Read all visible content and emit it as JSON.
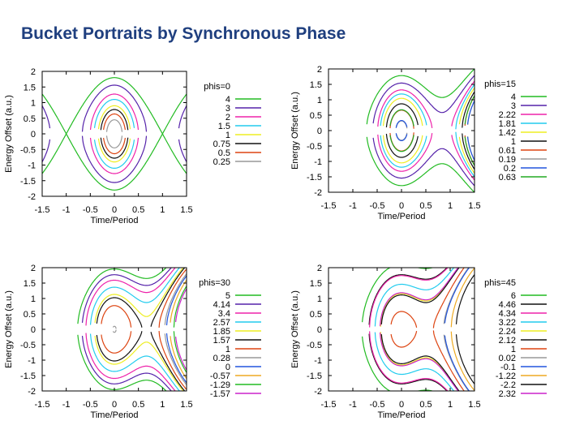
{
  "page": {
    "title": "Bucket Portraits by Synchronous Phase"
  },
  "chart_data": [
    {
      "type": "line",
      "title": "",
      "xlabel": "Time/Period",
      "ylabel": "Energy Offset (a.u.)",
      "xlim": [
        -1.5,
        1.5
      ],
      "ylim": [
        -2,
        2
      ],
      "xticks": [
        "-1.5",
        "-1",
        "-0.5",
        "0",
        "0.5",
        "1",
        "1.5"
      ],
      "yticks": [
        "-2",
        "-1.5",
        "-1",
        "-0.5",
        "0",
        "0.5",
        "1",
        "1.5",
        "2"
      ],
      "phi_s_deg": 0,
      "legend_title": "phis=0",
      "legend_position": "right",
      "series": [
        {
          "name": "4",
          "H": 4,
          "color": "#22bb22"
        },
        {
          "name": "3",
          "H": 3,
          "color": "#5522aa"
        },
        {
          "name": "2",
          "H": 2,
          "color": "#ee22aa"
        },
        {
          "name": "1.5",
          "H": 1.5,
          "color": "#22ccee"
        },
        {
          "name": "1",
          "H": 1,
          "color": "#eeee22"
        },
        {
          "name": "0.75",
          "H": 0.75,
          "color": "#111111"
        },
        {
          "name": "0.5",
          "H": 0.5,
          "color": "#dd4411"
        },
        {
          "name": "0.25",
          "H": 0.25,
          "color": "#999999"
        }
      ]
    },
    {
      "type": "line",
      "title": "",
      "xlabel": "Time/Period",
      "ylabel": "Energy Offset (a.u.)",
      "xlim": [
        -1.5,
        1.5
      ],
      "ylim": [
        -2,
        2
      ],
      "xticks": [
        "-1.5",
        "-1",
        "-0.5",
        "0",
        "0.5",
        "1",
        "1.5"
      ],
      "yticks": [
        "-2",
        "-1.5",
        "-1",
        "-0.5",
        "0",
        "0.5",
        "1",
        "1.5",
        "2"
      ],
      "phi_s_deg": 15,
      "legend_title": "phis=15",
      "legend_position": "right",
      "series": [
        {
          "name": "4",
          "H": 4,
          "color": "#22bb22"
        },
        {
          "name": "3",
          "H": 3,
          "color": "#5522aa"
        },
        {
          "name": "2.22",
          "H": 2.22,
          "color": "#ee22aa"
        },
        {
          "name": "1.81",
          "H": 1.81,
          "color": "#22ccee"
        },
        {
          "name": "1.42",
          "H": 1.42,
          "color": "#eeee22"
        },
        {
          "name": "1",
          "H": 1,
          "color": "#111111"
        },
        {
          "name": "0.61",
          "H": 0.61,
          "color": "#dd4411"
        },
        {
          "name": "0.19",
          "H": 0.19,
          "color": "#999999"
        },
        {
          "name": "0.2",
          "H": 0.2,
          "color": "#2255dd"
        },
        {
          "name": "0.63",
          "H": 0.63,
          "color": "#22aa22"
        }
      ]
    },
    {
      "type": "line",
      "title": "",
      "xlabel": "Time/Period",
      "ylabel": "Energy Offset (a.u.)",
      "xlim": [
        -1.5,
        1.5
      ],
      "ylim": [
        -2,
        2
      ],
      "xticks": [
        "-1.5",
        "-1",
        "-0.5",
        "0",
        "0.5",
        "1",
        "1.5"
      ],
      "yticks": [
        "-2",
        "-1.5",
        "-1",
        "-0.5",
        "0",
        "0.5",
        "1",
        "1.5",
        "2"
      ],
      "phi_s_deg": 30,
      "legend_title": "phis=30",
      "legend_position": "right",
      "series": [
        {
          "name": "5",
          "H": 5,
          "color": "#22bb22"
        },
        {
          "name": "4.14",
          "H": 4.14,
          "color": "#5522aa"
        },
        {
          "name": "3.4",
          "H": 3.4,
          "color": "#ee22aa"
        },
        {
          "name": "2.57",
          "H": 2.57,
          "color": "#22ccee"
        },
        {
          "name": "1.85",
          "H": 1.85,
          "color": "#eeee22"
        },
        {
          "name": "1.57",
          "H": 1.57,
          "color": "#111111"
        },
        {
          "name": "1",
          "H": 1,
          "color": "#dd4411"
        },
        {
          "name": "0.28",
          "H": 0.28,
          "color": "#999999"
        },
        {
          "name": "0",
          "H": 0,
          "color": "#2255dd"
        },
        {
          "name": "-0.57",
          "H": -0.57,
          "color": "#eeaa22"
        },
        {
          "name": "-1.29",
          "H": -1.29,
          "color": "#22bb22"
        },
        {
          "name": "-1.57",
          "H": -1.57,
          "color": "#cc22cc"
        }
      ]
    },
    {
      "type": "line",
      "title": "",
      "xlabel": "Time/Period",
      "ylabel": "Energy Offset (a.u.)",
      "xlim": [
        -1.5,
        1.5
      ],
      "ylim": [
        -2,
        2
      ],
      "xticks": [
        "-1.5",
        "-1",
        "-0.5",
        "0",
        "0.5",
        "1",
        "1.5"
      ],
      "yticks": [
        "-2",
        "-1.5",
        "-1",
        "-0.5",
        "0",
        "0.5",
        "1",
        "1.5",
        "2"
      ],
      "phi_s_deg": 45,
      "legend_title": "phis=45",
      "legend_position": "right",
      "series": [
        {
          "name": "6",
          "H": 6,
          "color": "#22bb22"
        },
        {
          "name": "4.46",
          "H": 4.46,
          "color": "#111111"
        },
        {
          "name": "4.34",
          "H": 4.34,
          "color": "#ee22aa"
        },
        {
          "name": "3.22",
          "H": 3.22,
          "color": "#22ccee"
        },
        {
          "name": "2.24",
          "H": 2.24,
          "color": "#eeee22"
        },
        {
          "name": "2.12",
          "H": 2.12,
          "color": "#111111"
        },
        {
          "name": "1",
          "H": 1,
          "color": "#dd4411"
        },
        {
          "name": "0.02",
          "H": 0.02,
          "color": "#999999"
        },
        {
          "name": "-0.1",
          "H": -0.1,
          "color": "#2255dd"
        },
        {
          "name": "-1.22",
          "H": -1.22,
          "color": "#eeaa22"
        },
        {
          "name": "-2.2",
          "H": -2.2,
          "color": "#111111"
        },
        {
          "name": "2.32",
          "H": 2.32,
          "color": "#cc22cc"
        }
      ]
    }
  ]
}
